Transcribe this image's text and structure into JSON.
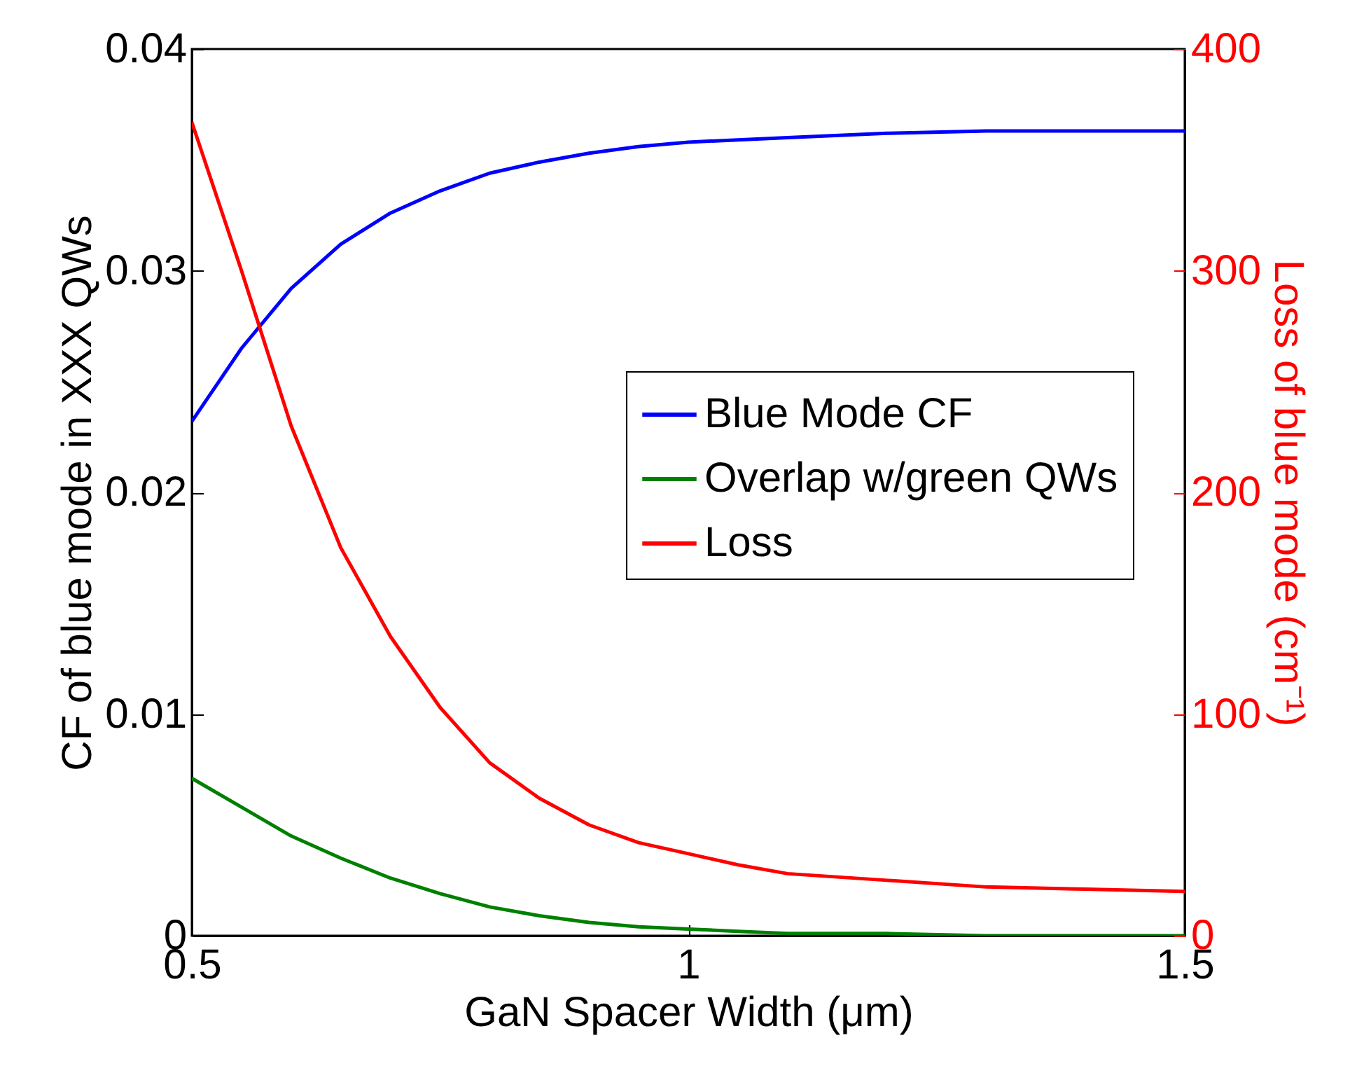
{
  "chart_data": {
    "type": "line",
    "xlabel": "GaN Spacer Width (μm)",
    "ylabel": "CF of blue mode in XXX QWs",
    "y2label": "Loss of blue mode (cm⁻¹)",
    "x": [
      0.5,
      0.55,
      0.6,
      0.65,
      0.7,
      0.75,
      0.8,
      0.85,
      0.9,
      0.95,
      1.0,
      1.05,
      1.1,
      1.2,
      1.3,
      1.4,
      1.5
    ],
    "series": [
      {
        "name": "Blue Mode CF",
        "color": "#0000ff",
        "values": [
          0.0232,
          0.0265,
          0.0292,
          0.0312,
          0.0326,
          0.0336,
          0.0344,
          0.0349,
          0.0353,
          0.0356,
          0.0358,
          0.0359,
          0.036,
          0.0362,
          0.0363,
          0.0363,
          0.0363
        ]
      },
      {
        "name": "Overlap w/green QWs",
        "color": "#008000",
        "values": [
          0.0071,
          0.0058,
          0.0045,
          0.0035,
          0.0026,
          0.0019,
          0.0013,
          0.0009,
          0.0006,
          0.0004,
          0.0003,
          0.0002,
          0.0001,
          0.0001,
          0.0,
          0.0,
          0.0
        ]
      },
      {
        "name": "Loss",
        "color": "#ff0000",
        "axis": "y2",
        "values": [
          367,
          300,
          230,
          175,
          135,
          103,
          78,
          62,
          50,
          42,
          37,
          32,
          28,
          25,
          22,
          21,
          20
        ]
      }
    ],
    "xlim": [
      0.5,
      1.5
    ],
    "xticks": [
      0.5,
      1,
      1.5
    ],
    "ylim": [
      0,
      0.04
    ],
    "yticks": [
      0,
      0.01,
      0.02,
      0.03,
      0.04
    ],
    "y2lim": [
      0,
      400
    ],
    "y2ticks": [
      0,
      100,
      200,
      300,
      400
    ],
    "legend": "right",
    "grid": false,
    "marker": "none",
    "line_style": "solid"
  }
}
